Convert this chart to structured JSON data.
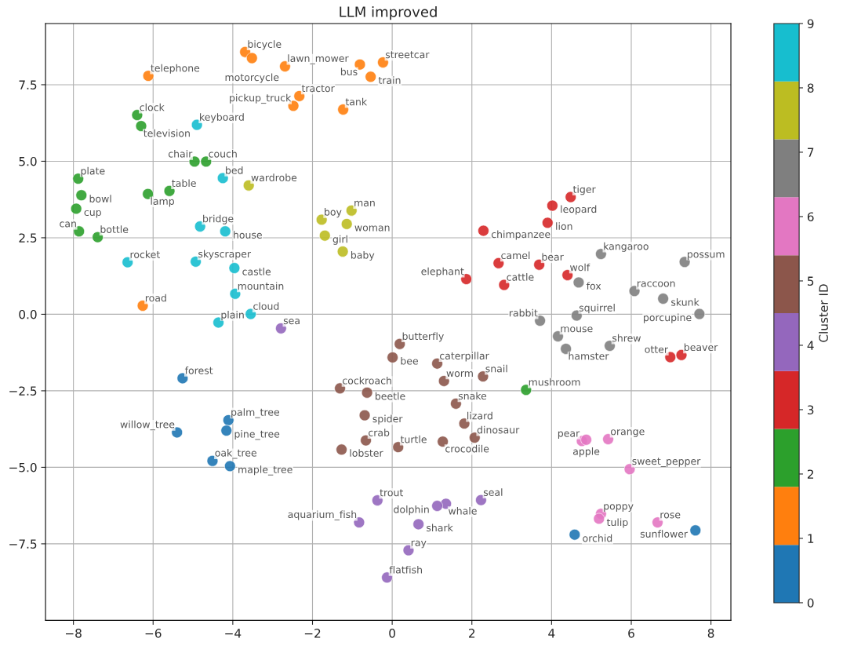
{
  "chart_data": {
    "type": "scatter",
    "title": "LLM improved",
    "clabel": "Cluster ID",
    "clim": [
      0,
      9
    ],
    "cticks": [
      0,
      1,
      2,
      3,
      4,
      5,
      6,
      7,
      8,
      9
    ],
    "xlim": [
      -8.7,
      8.5
    ],
    "xticks": [
      {
        "value": -8,
        "label": "−8"
      },
      {
        "value": -6,
        "label": "−6"
      },
      {
        "value": -4,
        "label": "−4"
      },
      {
        "value": -2,
        "label": "−2"
      },
      0,
      2,
      4,
      6,
      8
    ],
    "ylim": [
      -10.0,
      9.5
    ],
    "yticks": [
      {
        "value": -7.5,
        "label": "−7.5"
      },
      {
        "value": -5,
        "label": "−5.0"
      },
      {
        "value": -2.5,
        "label": "−2.5"
      },
      {
        "value": 0,
        "label": "0.0"
      },
      2.5,
      {
        "value": 5,
        "label": "5.0"
      },
      7.5
    ],
    "grid": true,
    "marker": "circle",
    "legend": false,
    "series": [
      {
        "x": [
          -6.12,
          -3.69,
          -3.52,
          -6.4,
          -6.3,
          -4.9,
          -4.96,
          -4.67,
          -7.88,
          -4.25,
          -3.6,
          -7.8,
          -6.13,
          -5.59,
          -7.93,
          -7.86,
          -7.39,
          -4.82,
          -4.19,
          -6.64,
          -4.93,
          -3.96,
          -3.94,
          -6.26,
          -3.55,
          -4.36,
          -2.69,
          -0.81,
          -0.23,
          -0.54,
          -2.33,
          -2.48,
          -1.23,
          -1.02,
          -1.77,
          -1.14,
          -1.69,
          -1.24,
          2.29,
          2.67,
          1.86,
          -2.79,
          4.48,
          4.02,
          3.9,
          2.81,
          3.69,
          4.4,
          4.68,
          5.24,
          7.34,
          6.08,
          6.8,
          7.71,
          4.63,
          3.71,
          4.16,
          4.36,
          5.46,
          6.98,
          7.26,
          3.36,
          -5.26,
          -4.11,
          -5.4,
          -4.16,
          -4.51,
          -4.07,
          0.19,
          0.01,
          1.13,
          1.3,
          2.28,
          -1.31,
          -0.63,
          1.6,
          -0.69,
          1.81,
          -0.66,
          1.27,
          2.07,
          -1.27,
          0.15,
          -0.37,
          1.35,
          1.13,
          2.23,
          -0.83,
          0.66,
          0.41,
          -0.13,
          4.76,
          4.87,
          5.42,
          5.96,
          5.24,
          5.19,
          6.66,
          4.58,
          7.61
        ],
        "values": [
          7.79,
          8.57,
          8.37,
          6.51,
          6.15,
          6.19,
          4.99,
          4.99,
          4.43,
          4.45,
          4.21,
          3.89,
          3.93,
          4.03,
          3.45,
          2.71,
          2.52,
          2.87,
          2.71,
          1.7,
          1.72,
          1.51,
          0.67,
          0.28,
          0.01,
          -0.27,
          8.1,
          8.16,
          8.23,
          7.76,
          7.13,
          6.81,
          6.69,
          3.39,
          3.09,
          2.95,
          2.57,
          2.05,
          2.73,
          1.67,
          1.15,
          -0.46,
          3.83,
          3.55,
          2.99,
          0.96,
          1.62,
          1.28,
          1.04,
          1.97,
          1.71,
          0.76,
          0.51,
          0.01,
          -0.04,
          -0.21,
          -0.72,
          -1.13,
          -1.03,
          -1.4,
          -1.33,
          -2.47,
          -2.09,
          -3.46,
          -3.86,
          -3.8,
          -4.79,
          -4.96,
          -0.97,
          -1.41,
          -1.61,
          -2.18,
          -2.03,
          -2.42,
          -2.56,
          -2.92,
          -3.3,
          -3.57,
          -4.12,
          -4.16,
          -4.03,
          -4.42,
          -4.34,
          -6.08,
          -6.19,
          -6.26,
          -6.07,
          -6.8,
          -6.86,
          -7.71,
          -8.6,
          -4.14,
          -4.1,
          -4.08,
          -5.06,
          -6.52,
          -6.68,
          -6.8,
          -7.2,
          -7.06
        ],
        "cvalues": [
          1,
          1,
          1,
          2,
          2,
          9,
          2,
          2,
          2,
          9,
          8,
          2,
          2,
          2,
          2,
          2,
          2,
          9,
          9,
          9,
          9,
          9,
          9,
          1,
          9,
          9,
          1,
          1,
          1,
          1,
          1,
          1,
          1,
          8,
          8,
          8,
          8,
          8,
          3,
          3,
          3,
          4,
          3,
          3,
          3,
          3,
          3,
          3,
          7,
          7,
          7,
          7,
          7,
          7,
          7,
          7,
          7,
          7,
          7,
          3,
          3,
          2,
          0,
          0,
          0,
          0,
          0,
          0,
          5,
          5,
          5,
          5,
          5,
          5,
          5,
          5,
          5,
          5,
          5,
          5,
          5,
          5,
          5,
          4,
          4,
          4,
          4,
          4,
          4,
          4,
          4,
          6,
          6,
          6,
          6,
          6,
          6,
          6,
          0,
          0
        ]
      }
    ],
    "annotations": [
      {
        "text": "telephone",
        "x": -6.12,
        "y": 7.79
      },
      {
        "text": "bicycle",
        "x": -3.69,
        "y": 8.57
      },
      {
        "text": "motorcycle",
        "x": -3.52,
        "y": 8.37
      },
      {
        "text": "clock",
        "x": -6.4,
        "y": 6.51
      },
      {
        "text": "television",
        "x": -6.3,
        "y": 6.15
      },
      {
        "text": "keyboard",
        "x": -4.9,
        "y": 6.19
      },
      {
        "text": "chair",
        "x": -4.96,
        "y": 4.99
      },
      {
        "text": "couch",
        "x": -4.67,
        "y": 4.99
      },
      {
        "text": "plate",
        "x": -7.88,
        "y": 4.43
      },
      {
        "text": "bed",
        "x": -4.25,
        "y": 4.45
      },
      {
        "text": "wardrobe",
        "x": -3.6,
        "y": 4.21
      },
      {
        "text": "bowl",
        "x": -7.8,
        "y": 3.89
      },
      {
        "text": "lamp",
        "x": -6.13,
        "y": 3.93
      },
      {
        "text": "table",
        "x": -5.59,
        "y": 4.03
      },
      {
        "text": "cup",
        "x": -7.93,
        "y": 3.45
      },
      {
        "text": "can",
        "x": -7.86,
        "y": 2.71
      },
      {
        "text": "bottle",
        "x": -7.39,
        "y": 2.52
      },
      {
        "text": "bridge",
        "x": -4.82,
        "y": 2.87
      },
      {
        "text": "house",
        "x": -4.19,
        "y": 2.71
      },
      {
        "text": "rocket",
        "x": -6.64,
        "y": 1.7
      },
      {
        "text": "skyscraper",
        "x": -4.93,
        "y": 1.72
      },
      {
        "text": "castle",
        "x": -3.96,
        "y": 1.51
      },
      {
        "text": "mountain",
        "x": -3.94,
        "y": 0.67
      },
      {
        "text": "road",
        "x": -6.26,
        "y": 0.28
      },
      {
        "text": "cloud",
        "x": -3.55,
        "y": 0.01
      },
      {
        "text": "plain",
        "x": -4.36,
        "y": -0.27
      },
      {
        "text": "lawn_mower",
        "x": -2.69,
        "y": 8.1
      },
      {
        "text": "bus",
        "x": -0.81,
        "y": 8.16
      },
      {
        "text": "streetcar",
        "x": -0.23,
        "y": 8.23
      },
      {
        "text": "train",
        "x": -0.54,
        "y": 7.76
      },
      {
        "text": "tractor",
        "x": -2.33,
        "y": 7.13
      },
      {
        "text": "pickup_truck",
        "x": -2.48,
        "y": 6.81
      },
      {
        "text": "tank",
        "x": -1.23,
        "y": 6.69
      },
      {
        "text": "man",
        "x": -1.02,
        "y": 3.39
      },
      {
        "text": "boy",
        "x": -1.77,
        "y": 3.09
      },
      {
        "text": "woman",
        "x": -1.14,
        "y": 2.95
      },
      {
        "text": "girl",
        "x": -1.69,
        "y": 2.57
      },
      {
        "text": "baby",
        "x": -1.24,
        "y": 2.05
      },
      {
        "text": "chimpanzee",
        "x": 2.29,
        "y": 2.73
      },
      {
        "text": "camel",
        "x": 2.67,
        "y": 1.67
      },
      {
        "text": "elephant",
        "x": 1.86,
        "y": 1.15
      },
      {
        "text": "sea",
        "x": -2.79,
        "y": -0.46
      },
      {
        "text": "tiger",
        "x": 4.48,
        "y": 3.83
      },
      {
        "text": "leopard",
        "x": 4.02,
        "y": 3.55
      },
      {
        "text": "lion",
        "x": 3.9,
        "y": 2.99
      },
      {
        "text": "cattle",
        "x": 2.81,
        "y": 0.96
      },
      {
        "text": "bear",
        "x": 3.69,
        "y": 1.62
      },
      {
        "text": "wolf",
        "x": 4.4,
        "y": 1.28
      },
      {
        "text": "fox",
        "x": 4.68,
        "y": 1.04
      },
      {
        "text": "kangaroo",
        "x": 5.24,
        "y": 1.97
      },
      {
        "text": "possum",
        "x": 7.34,
        "y": 1.71
      },
      {
        "text": "raccoon",
        "x": 6.08,
        "y": 0.76
      },
      {
        "text": "skunk",
        "x": 6.8,
        "y": 0.51
      },
      {
        "text": "porcupine",
        "x": 7.71,
        "y": 0.01
      },
      {
        "text": "squirrel",
        "x": 4.63,
        "y": -0.04
      },
      {
        "text": "rabbit",
        "x": 3.71,
        "y": -0.21
      },
      {
        "text": "mouse",
        "x": 4.16,
        "y": -0.72
      },
      {
        "text": "hamster",
        "x": 4.36,
        "y": -1.13
      },
      {
        "text": "shrew",
        "x": 5.46,
        "y": -1.03
      },
      {
        "text": "otter",
        "x": 6.98,
        "y": -1.4
      },
      {
        "text": "beaver",
        "x": 7.26,
        "y": -1.33
      },
      {
        "text": "mushroom",
        "x": 3.36,
        "y": -2.47
      },
      {
        "text": "forest",
        "x": -5.26,
        "y": -2.09
      },
      {
        "text": "palm_tree",
        "x": -4.11,
        "y": -3.46
      },
      {
        "text": "willow_tree",
        "x": -5.4,
        "y": -3.86
      },
      {
        "text": "pine_tree",
        "x": -4.16,
        "y": -3.8
      },
      {
        "text": "oak_tree",
        "x": -4.51,
        "y": -4.79
      },
      {
        "text": "maple_tree",
        "x": -4.07,
        "y": -4.96
      },
      {
        "text": "butterfly",
        "x": 0.19,
        "y": -0.97
      },
      {
        "text": "bee",
        "x": 0.01,
        "y": -1.41
      },
      {
        "text": "caterpillar",
        "x": 1.13,
        "y": -1.61
      },
      {
        "text": "worm",
        "x": 1.3,
        "y": -2.18
      },
      {
        "text": "snail",
        "x": 2.28,
        "y": -2.03
      },
      {
        "text": "cockroach",
        "x": -1.31,
        "y": -2.42
      },
      {
        "text": "beetle",
        "x": -0.63,
        "y": -2.56
      },
      {
        "text": "snake",
        "x": 1.6,
        "y": -2.92
      },
      {
        "text": "spider",
        "x": -0.69,
        "y": -3.3
      },
      {
        "text": "lizard",
        "x": 1.81,
        "y": -3.57
      },
      {
        "text": "crab",
        "x": -0.66,
        "y": -4.12
      },
      {
        "text": "crocodile",
        "x": 1.27,
        "y": -4.16
      },
      {
        "text": "dinosaur",
        "x": 2.07,
        "y": -4.03
      },
      {
        "text": "lobster",
        "x": -1.27,
        "y": -4.42
      },
      {
        "text": "turtle",
        "x": 0.15,
        "y": -4.34
      },
      {
        "text": "trout",
        "x": -0.37,
        "y": -6.08
      },
      {
        "text": "whale",
        "x": 1.35,
        "y": -6.19
      },
      {
        "text": "dolphin",
        "x": 1.13,
        "y": -6.26
      },
      {
        "text": "seal",
        "x": 2.23,
        "y": -6.07
      },
      {
        "text": "aquarium_fish",
        "x": -0.83,
        "y": -6.8
      },
      {
        "text": "shark",
        "x": 0.66,
        "y": -6.86
      },
      {
        "text": "ray",
        "x": 0.41,
        "y": -7.71
      },
      {
        "text": "flatfish",
        "x": -0.13,
        "y": -8.6
      },
      {
        "text": "pear",
        "x": 4.76,
        "y": -4.14
      },
      {
        "text": "apple",
        "x": 4.87,
        "y": -4.1
      },
      {
        "text": "orange",
        "x": 5.42,
        "y": -4.08
      },
      {
        "text": "sweet_pepper",
        "x": 5.96,
        "y": -5.06
      },
      {
        "text": "poppy",
        "x": 5.24,
        "y": -6.52
      },
      {
        "text": "tulip",
        "x": 5.19,
        "y": -6.68
      },
      {
        "text": "rose",
        "x": 6.66,
        "y": -6.8
      },
      {
        "text": "orchid",
        "x": 4.58,
        "y": -7.2
      },
      {
        "text": "sunflower",
        "x": 7.61,
        "y": -7.06
      }
    ]
  }
}
